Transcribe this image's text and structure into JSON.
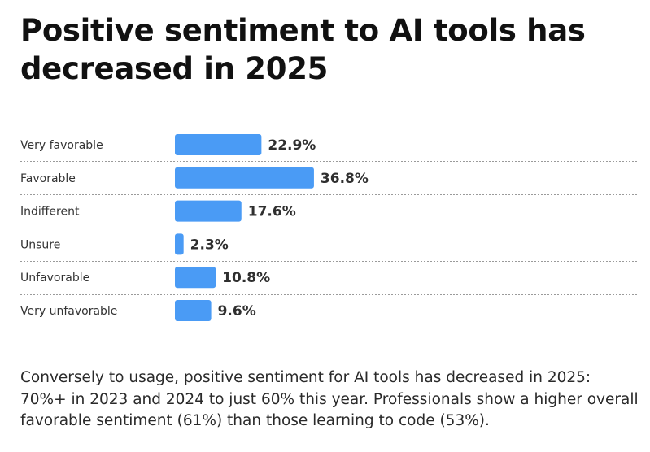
{
  "title": "Positive sentiment to AI tools has decreased in 2025",
  "caption": "Conversely to usage, positive sentiment for AI tools has decreased in 2025: 70%+ in 2023 and 2024 to just 60% this year. Professionals show a higher overall favorable sentiment (61%) than those learning to code (53%).",
  "chart_data": {
    "type": "bar",
    "orientation": "horizontal",
    "title": "Positive sentiment to AI tools has decreased in 2025",
    "xlabel": "",
    "ylabel": "",
    "categories": [
      "Very favorable",
      "Favorable",
      "Indifferent",
      "Unsure",
      "Unfavorable",
      "Very unfavorable"
    ],
    "values": [
      22.9,
      36.8,
      17.6,
      2.3,
      10.8,
      9.6
    ],
    "value_labels": [
      "22.9%",
      "36.8%",
      "17.6%",
      "2.3%",
      "10.8%",
      "9.6%"
    ],
    "unit": "%",
    "bar_color": "#4a9bf5",
    "grid": false,
    "legend": "none"
  }
}
